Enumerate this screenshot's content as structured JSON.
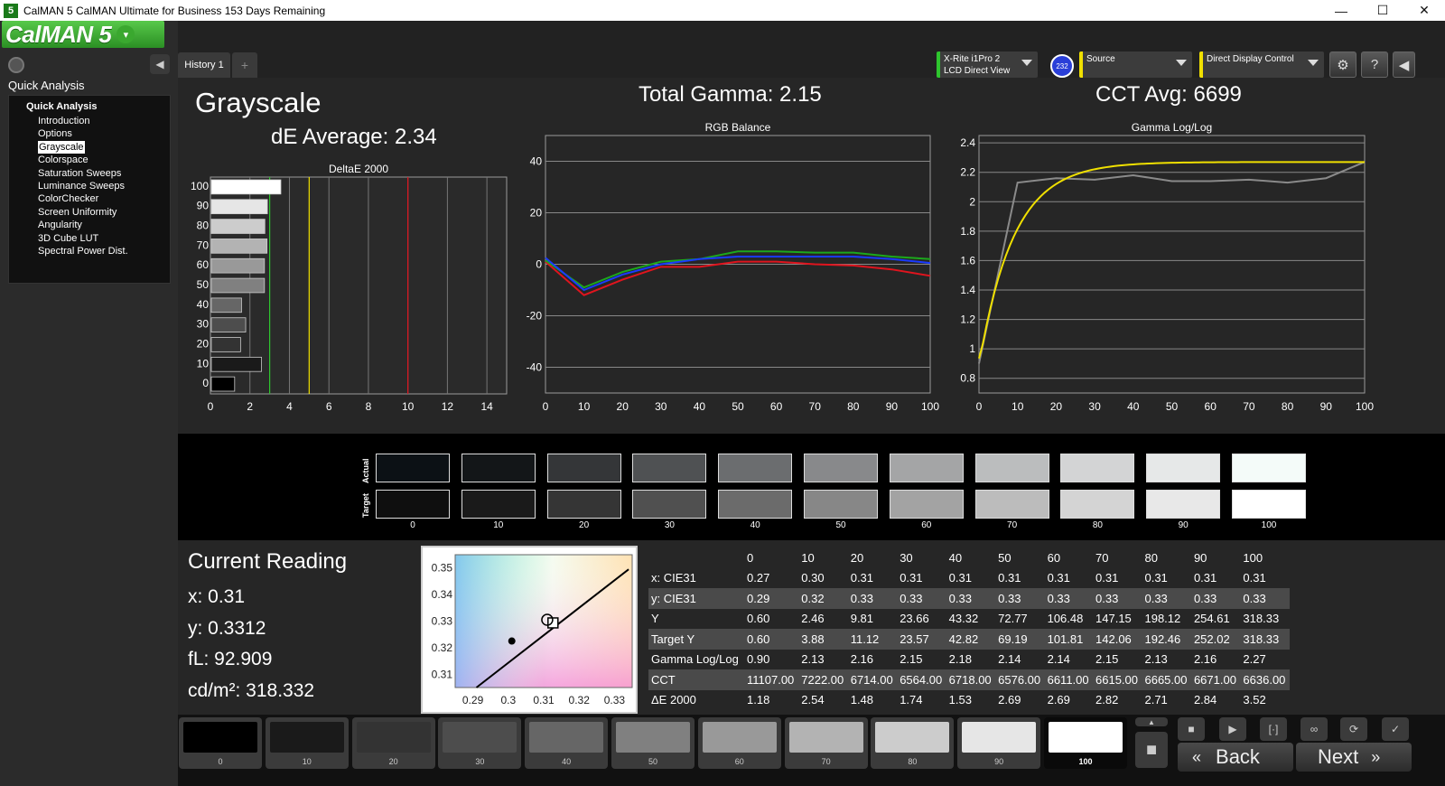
{
  "window": {
    "title": "CalMAN 5 CalMAN Ultimate for Business 153 Days Remaining",
    "app_icon": "5",
    "minimize": "—",
    "maximize": "☐",
    "close": "✕"
  },
  "logo": {
    "text": "CalMAN 5",
    "dropdown": "▾"
  },
  "sidebar": {
    "header": "Quick Analysis",
    "collapse": "◀",
    "tree_root": "Quick Analysis",
    "items": [
      "Introduction",
      "Options",
      "Grayscale",
      "Colorspace",
      "Saturation Sweeps",
      "Luminance Sweeps",
      "ColorChecker",
      "Screen Uniformity",
      "Angularity",
      "3D Cube LUT",
      "Spectral Power Dist."
    ],
    "selected": "Grayscale"
  },
  "tabs": {
    "history": "History 1",
    "add": "+"
  },
  "devices": {
    "meter_line1": "X-Rite i1Pro 2",
    "meter_line2": "LCD Direct View",
    "badge": "232",
    "source": "Source",
    "display": "Direct Display Control"
  },
  "toolbar": {
    "settings": "⚙",
    "help": "?",
    "collapse": "◀"
  },
  "panel": {
    "title": "Grayscale",
    "de_average": "dE Average: 2.34",
    "total_gamma": "Total Gamma: 2.15",
    "cct_avg": "CCT Avg: 6699"
  },
  "colors": {
    "green": "#2ec52e",
    "yellow": "#f0e000",
    "red": "#e0141e",
    "blue": "#1a3aff"
  },
  "chart_data": [
    {
      "type": "bar",
      "title": "DeltaE 2000",
      "orientation": "horizontal",
      "categories": [
        "100",
        "90",
        "80",
        "70",
        "60",
        "50",
        "40",
        "30",
        "20",
        "10",
        "0"
      ],
      "values": [
        3.52,
        2.84,
        2.71,
        2.82,
        2.69,
        2.69,
        1.53,
        1.74,
        1.48,
        2.54,
        1.18
      ],
      "xlim": [
        0,
        15
      ],
      "xticks": [
        "0",
        "2",
        "4",
        "6",
        "8",
        "10",
        "12",
        "14"
      ],
      "thresholds": [
        3,
        5,
        10
      ]
    },
    {
      "type": "line",
      "title": "RGB Balance",
      "x": [
        0,
        10,
        20,
        30,
        40,
        50,
        60,
        70,
        80,
        90,
        100
      ],
      "xticks": [
        "0",
        "10",
        "20",
        "30",
        "40",
        "50",
        "60",
        "70",
        "80",
        "90",
        "100"
      ],
      "yticks": [
        "40",
        "20",
        "0",
        "-20",
        "-40"
      ],
      "ylim": [
        -50,
        50
      ],
      "series": [
        {
          "values": [
            1,
            -12,
            -6,
            -1,
            -1,
            1,
            1,
            0,
            -0.5,
            -2,
            -4.5
          ]
        },
        {
          "values": [
            1.5,
            -9,
            -3,
            1,
            2,
            5,
            5,
            4.5,
            4.5,
            3,
            2
          ]
        },
        {
          "values": [
            2.5,
            -10,
            -4,
            0,
            2,
            3,
            3,
            3,
            3,
            2,
            0.5
          ]
        }
      ]
    },
    {
      "type": "line",
      "title": "Gamma Log/Log",
      "x": [
        0,
        10,
        20,
        30,
        40,
        50,
        60,
        70,
        80,
        90,
        100
      ],
      "xticks": [
        "0",
        "10",
        "20",
        "30",
        "40",
        "50",
        "60",
        "70",
        "80",
        "90",
        "100"
      ],
      "yticks": [
        "2.4",
        "2.2",
        "2",
        "1.8",
        "1.6",
        "1.4",
        "1.2",
        "1",
        "0.8"
      ],
      "ylim": [
        0.7,
        2.45
      ],
      "series": [
        {
          "values": [
            0.9,
            2.13,
            2.16,
            2.15,
            2.18,
            2.14,
            2.14,
            2.15,
            2.13,
            2.16,
            2.27
          ]
        },
        {
          "values": [
            0.9,
            1.92,
            2.08,
            2.15,
            2.19,
            2.22,
            2.24,
            2.25,
            2.26,
            2.27,
            2.27
          ]
        }
      ]
    },
    {
      "type": "scatter",
      "title": "",
      "xlim": [
        0.285,
        0.335
      ],
      "ylim": [
        0.305,
        0.355
      ],
      "xticks": [
        "0.29",
        "0.3",
        "0.31",
        "0.32",
        "0.33"
      ],
      "yticks": [
        "0.35",
        "0.34",
        "0.33",
        "0.32",
        "0.31"
      ],
      "points": [
        {
          "x": 0.301,
          "y": 0.3225,
          "marker": "dot"
        },
        {
          "x": 0.3125,
          "y": 0.3295,
          "marker": "square"
        },
        {
          "x": 0.311,
          "y": 0.3305,
          "marker": "circle"
        }
      ]
    }
  ],
  "swatches": {
    "actual_label": "Actual",
    "target_label": "Target",
    "levels": [
      "0",
      "10",
      "20",
      "30",
      "40",
      "50",
      "60",
      "70",
      "80",
      "90",
      "100"
    ],
    "actual_colors": [
      "#0c1115",
      "#131618",
      "#343638",
      "#4f5153",
      "#6b6d6f",
      "#88898b",
      "#a4a5a6",
      "#bbbdbe",
      "#d3d4d5",
      "#e6e8e8",
      "#f4fbf9"
    ],
    "target_colors": [
      "#0f0f0f",
      "#1a1a1a",
      "#353535",
      "#505050",
      "#6b6b6b",
      "#878787",
      "#a3a3a3",
      "#bcbcbc",
      "#d4d4d4",
      "#e8e8e8",
      "#ffffff"
    ]
  },
  "current_reading": {
    "title": "Current Reading",
    "x": "x: 0.31",
    "y": "y: 0.3312",
    "fl": "fL: 92.909",
    "cdm2": "cd/m²: 318.332"
  },
  "table": {
    "headers": [
      "",
      "0",
      "10",
      "20",
      "30",
      "40",
      "50",
      "60",
      "70",
      "80",
      "90",
      "100"
    ],
    "rows": [
      [
        "x: CIE31",
        "0.27",
        "0.30",
        "0.31",
        "0.31",
        "0.31",
        "0.31",
        "0.31",
        "0.31",
        "0.31",
        "0.31",
        "0.31"
      ],
      [
        "y: CIE31",
        "0.29",
        "0.32",
        "0.33",
        "0.33",
        "0.33",
        "0.33",
        "0.33",
        "0.33",
        "0.33",
        "0.33",
        "0.33"
      ],
      [
        "Y",
        "0.60",
        "2.46",
        "9.81",
        "23.66",
        "43.32",
        "72.77",
        "106.48",
        "147.15",
        "198.12",
        "254.61",
        "318.33"
      ],
      [
        "Target Y",
        "0.60",
        "3.88",
        "11.12",
        "23.57",
        "42.82",
        "69.19",
        "101.81",
        "142.06",
        "192.46",
        "252.02",
        "318.33"
      ],
      [
        "Gamma Log/Log",
        "0.90",
        "2.13",
        "2.16",
        "2.15",
        "2.18",
        "2.14",
        "2.14",
        "2.15",
        "2.13",
        "2.16",
        "2.27"
      ],
      [
        "CCT",
        "11107.00",
        "7222.00",
        "6714.00",
        "6564.00",
        "6718.00",
        "6576.00",
        "6611.00",
        "6615.00",
        "6665.00",
        "6671.00",
        "6636.00"
      ],
      [
        "ΔE 2000",
        "1.18",
        "2.54",
        "1.48",
        "1.74",
        "1.53",
        "2.69",
        "2.69",
        "2.82",
        "2.71",
        "2.84",
        "3.52"
      ]
    ]
  },
  "patches": {
    "labels": [
      "0",
      "10",
      "20",
      "30",
      "40",
      "50",
      "60",
      "70",
      "80",
      "90",
      "100"
    ],
    "colors": [
      "#000000",
      "#1a1a1a",
      "#333333",
      "#4d4d4d",
      "#666666",
      "#808080",
      "#999999",
      "#b3b3b3",
      "#cccccc",
      "#e6e6e6",
      "#ffffff"
    ],
    "selected": "100"
  },
  "controls": {
    "stop": "■",
    "play": "▶",
    "bracket": "[·]",
    "loop": "∞",
    "refresh": "⟳",
    "check": "✓",
    "up": "▲"
  },
  "nav": {
    "back": "Back",
    "next": "Next",
    "back_icon": "«",
    "next_icon": "»"
  }
}
